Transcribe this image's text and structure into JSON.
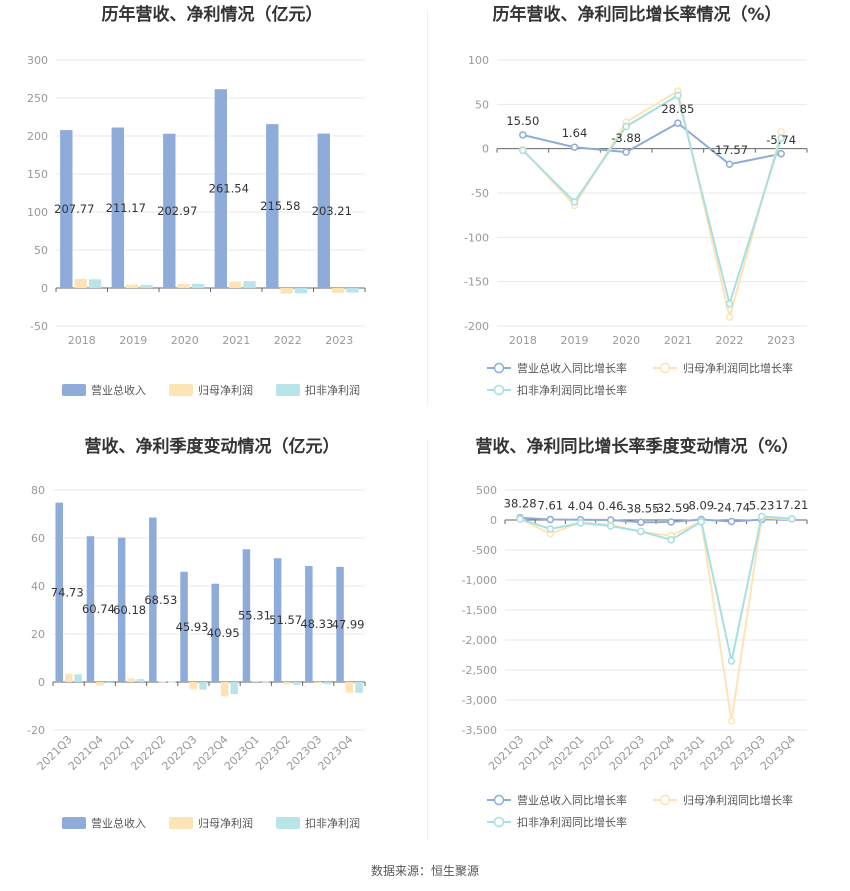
{
  "source": "数据来源：恒生聚源",
  "colors": {
    "revenue": "#8eabd9",
    "net": "#fde4b6",
    "deducted": "#b9e4e8",
    "line1": "#8eabd9",
    "line2": "#fde4b6",
    "line3": "#a8dfe0"
  },
  "chart_data": [
    {
      "type": "bar",
      "title": "历年营收、净利情况（亿元）",
      "categories": [
        "2018",
        "2019",
        "2020",
        "2021",
        "2022",
        "2023"
      ],
      "ylim": [
        -50,
        300
      ],
      "yticks": [
        -50,
        0,
        50,
        100,
        150,
        200,
        250,
        300
      ],
      "series": [
        {
          "name": "营业总收入",
          "values": [
            207.77,
            211.17,
            202.97,
            261.54,
            215.58,
            203.21
          ],
          "labels": [
            "207.77",
            "211.17",
            "202.97",
            "261.54",
            "215.58",
            "203.21"
          ]
        },
        {
          "name": "归母净利润",
          "values": [
            12,
            4.5,
            5.2,
            8.5,
            -7.5,
            -6.5
          ]
        },
        {
          "name": "扣非净利润",
          "values": [
            11.5,
            4,
            5.5,
            9,
            -7,
            -6
          ]
        }
      ]
    },
    {
      "type": "line",
      "title": "历年营收、净利同比增长率情况（%）",
      "categories": [
        "2018",
        "2019",
        "2020",
        "2021",
        "2022",
        "2023"
      ],
      "ylim": [
        -200,
        100
      ],
      "yticks": [
        -200,
        -150,
        -100,
        -50,
        0,
        50,
        100
      ],
      "series": [
        {
          "name": "营业总收入同比增长率",
          "values": [
            15.5,
            1.64,
            -3.88,
            28.85,
            -17.57,
            -5.74
          ],
          "labels": [
            "15.50",
            "1.64",
            "-3.88",
            "28.85",
            "-17.57",
            "-5.74"
          ]
        },
        {
          "name": "归母净利润同比增长率",
          "values": [
            -1,
            -64,
            30,
            65,
            -190,
            19
          ]
        },
        {
          "name": "扣非净利润同比增长率",
          "values": [
            -2,
            -60,
            25,
            60,
            -175,
            12
          ]
        }
      ]
    },
    {
      "type": "bar",
      "title": "营收、净利季度变动情况（亿元）",
      "categories": [
        "2021Q3",
        "2021Q4",
        "2022Q1",
        "2022Q2",
        "2022Q3",
        "2022Q4",
        "2023Q1",
        "2023Q2",
        "2023Q3",
        "2023Q4"
      ],
      "ylim": [
        -20,
        80
      ],
      "yticks": [
        -20,
        0,
        20,
        40,
        60,
        80
      ],
      "series": [
        {
          "name": "营业总收入",
          "values": [
            74.73,
            60.74,
            60.18,
            68.53,
            45.93,
            40.95,
            55.31,
            51.57,
            48.33,
            47.99
          ],
          "labels": [
            "74.73",
            "60.74",
            "60.18",
            "68.53",
            "45.93",
            "40.95",
            "55.31",
            "51.57",
            "48.33",
            "47.99"
          ]
        },
        {
          "name": "归母净利润",
          "values": [
            3.5,
            -1.5,
            1.5,
            0.3,
            -3,
            -6,
            0.5,
            -1,
            -0.6,
            -4.5
          ]
        },
        {
          "name": "扣非净利润",
          "values": [
            3.2,
            -0.5,
            1.2,
            0.2,
            -3.2,
            -5,
            0.3,
            -1.2,
            -0.9,
            -4.5
          ]
        }
      ]
    },
    {
      "type": "line",
      "title": "营收、净利同比增长率季度变动情况（%）",
      "categories": [
        "2021Q3",
        "2021Q4",
        "2022Q1",
        "2022Q2",
        "2022Q3",
        "2022Q4",
        "2023Q1",
        "2023Q2",
        "2023Q3",
        "2023Q4"
      ],
      "ylim": [
        -3500,
        500
      ],
      "yticks": [
        -3500,
        -3000,
        -2500,
        -2000,
        -1500,
        -1000,
        -500,
        0,
        500
      ],
      "ytick_labels": [
        "-3,500",
        "-3,000",
        "-2,500",
        "-2,000",
        "-1,500",
        "-1,000",
        "-500",
        "0",
        "500"
      ],
      "series": [
        {
          "name": "营业总收入同比增长率",
          "values": [
            38.28,
            7.61,
            4.04,
            0.46,
            -38.55,
            -32.59,
            8.09,
            -24.74,
            5.23,
            17.21
          ],
          "labels": [
            "38.28",
            "7.61",
            "4.04",
            "0.46",
            "-38.55",
            "-32.59",
            "8.09",
            "-24.74",
            "5.23",
            "17.21"
          ]
        },
        {
          "name": "归母净利润同比增长率",
          "values": [
            20,
            -230,
            -40,
            -80,
            -200,
            -260,
            -20,
            -3350,
            40,
            10
          ]
        },
        {
          "name": "扣非净利润同比增长率",
          "values": [
            15,
            -150,
            -50,
            -100,
            -190,
            -330,
            -30,
            -2350,
            60,
            20
          ]
        }
      ]
    }
  ]
}
